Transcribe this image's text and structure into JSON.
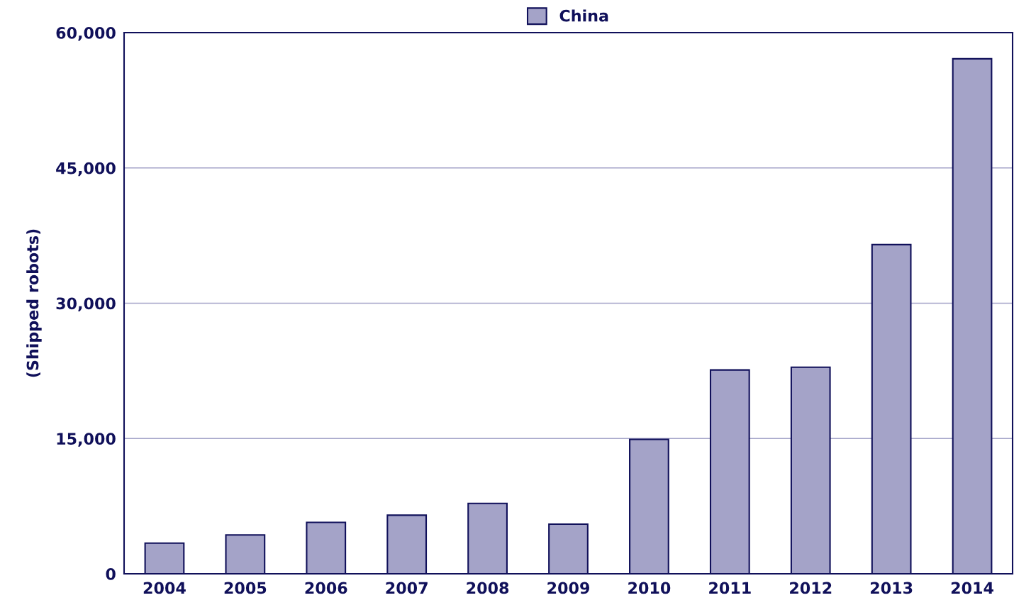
{
  "chart_data": {
    "type": "bar",
    "ylabel": "(Shipped robots)",
    "categories": [
      "2004",
      "2005",
      "2006",
      "2007",
      "2008",
      "2009",
      "2010",
      "2011",
      "2012",
      "2013",
      "2014"
    ],
    "series": [
      {
        "name": "China",
        "color": "#a4a3c8",
        "values": [
          3400,
          4300,
          5700,
          6500,
          7800,
          5500,
          14900,
          22600,
          22900,
          36500,
          57100
        ]
      }
    ],
    "ylim": [
      0,
      60000
    ],
    "yticks": [
      {
        "value": 0,
        "label": "0"
      },
      {
        "value": 15000,
        "label": "15,000"
      },
      {
        "value": 30000,
        "label": "30,000"
      },
      {
        "value": 45000,
        "label": "45,000"
      },
      {
        "value": 60000,
        "label": "60,000"
      }
    ],
    "grid": "y",
    "legend": "top"
  }
}
